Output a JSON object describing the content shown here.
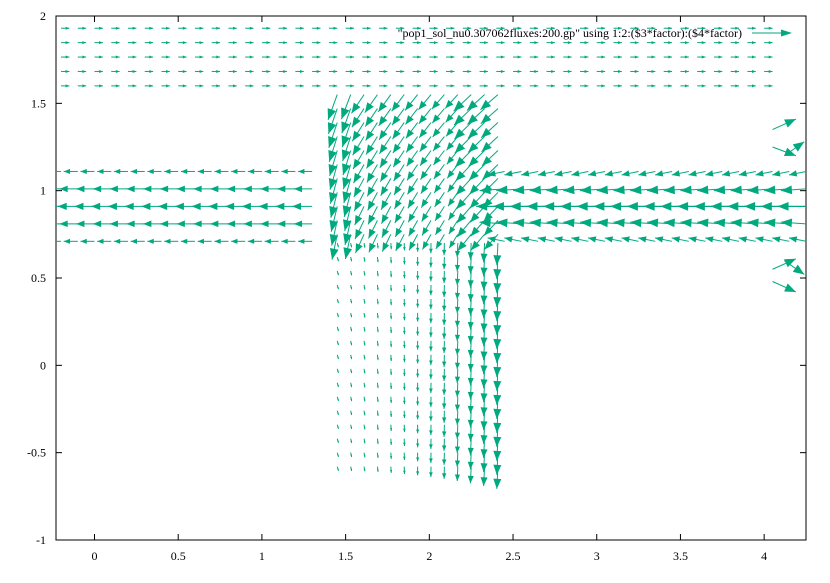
{
  "chart_data": {
    "type": "vector-field",
    "title": "",
    "xlabel": "",
    "ylabel": "",
    "xlim": [
      -0.23,
      4.25
    ],
    "ylim": [
      -1,
      2
    ],
    "x_ticks": [
      0,
      0.5,
      1,
      1.5,
      2,
      2.5,
      3,
      3.5,
      4
    ],
    "x_tick_labels": [
      "0",
      "0.5",
      "1",
      "1.5",
      "2",
      "2.5",
      "3",
      "3.5",
      "4"
    ],
    "y_ticks": [
      -1,
      -0.5,
      0,
      0.5,
      1,
      1.5,
      2
    ],
    "y_tick_labels": [
      "-1",
      "-0.5",
      "0",
      "0.5",
      "1",
      "1.5",
      "2"
    ],
    "grid": false,
    "legend_position": "top-right",
    "series": [
      {
        "name": "\"pop1_sol_nu0.307062fluxes:200.gp\" using 1:2:($3*factor):($4*factor)",
        "color": "#00a97e",
        "regions": {
          "top_channel": {
            "x": [
              -0.2,
              4.05
            ],
            "y": [
              1.6,
              1.93
            ],
            "velocity": [
              0.05,
              0
            ]
          },
          "left_arm": {
            "x": [
              -0.2,
              1.35
            ],
            "y": [
              0.71,
              1.11
            ],
            "velocity": [
              -0.12,
              0
            ]
          },
          "right_arm": {
            "x": [
              2.45,
              4.25
            ],
            "y": [
              0.71,
              1.11
            ],
            "velocity": [
              -0.17,
              0
            ]
          },
          "vertical_branch": {
            "x": [
              1.45,
              2.45
            ],
            "y": [
              -0.58,
              1.6
            ],
            "velocity": [
              0,
              -0.08
            ]
          }
        }
      }
    ]
  }
}
